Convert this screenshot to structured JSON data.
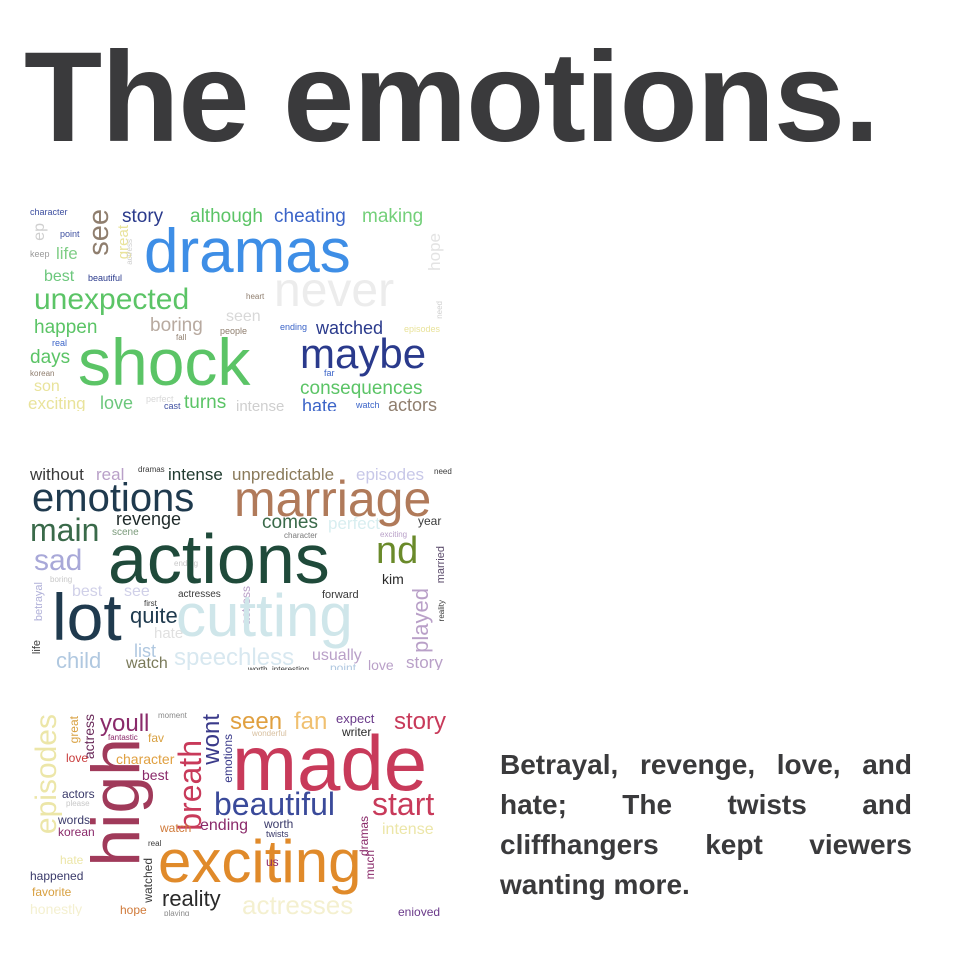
{
  "title": "The emotions.",
  "caption": "Betrayal, revenge, love, and hate; The twists and cliffhangers kept viewers wanting more.",
  "clouds": [
    {
      "words": [
        {
          "text": "character",
          "color": "#3d4fa0"
        },
        {
          "text": "story",
          "color": "#2a3a8c"
        },
        {
          "text": "although",
          "color": "#5bc466"
        },
        {
          "text": "cheating",
          "color": "#3b64c8"
        },
        {
          "text": "making",
          "color": "#74d07a"
        },
        {
          "text": "ep",
          "color": "#cfcfcf"
        },
        {
          "text": "point",
          "color": "#3d4fa0"
        },
        {
          "text": "see",
          "color": "#8f7e6e"
        },
        {
          "text": "great",
          "color": "#e9e39b"
        },
        {
          "text": "dramas",
          "color": "#3e8ee6"
        },
        {
          "text": "hope",
          "color": "#e3e3e3"
        },
        {
          "text": "keep",
          "color": "#9a9a9a"
        },
        {
          "text": "life",
          "color": "#7fce86"
        },
        {
          "text": "actress",
          "color": "#cfcfcf"
        },
        {
          "text": "best",
          "color": "#6cc77c"
        },
        {
          "text": "beautiful",
          "color": "#2a3a8c"
        },
        {
          "text": "never",
          "color": "#ececec"
        },
        {
          "text": "unexpected",
          "color": "#5bc466"
        },
        {
          "text": "heart",
          "color": "#8f7e6e"
        },
        {
          "text": "happen",
          "color": "#5bc466"
        },
        {
          "text": "boring",
          "color": "#b8aaa0"
        },
        {
          "text": "fall",
          "color": "#8f7e6e"
        },
        {
          "text": "people",
          "color": "#8f7e6e"
        },
        {
          "text": "seen",
          "color": "#d8d8d8"
        },
        {
          "text": "ending",
          "color": "#3b64c8"
        },
        {
          "text": "watched",
          "color": "#2a3a8c"
        },
        {
          "text": "episodes",
          "color": "#e9e39b"
        },
        {
          "text": "need",
          "color": "#cfcfcf"
        },
        {
          "text": "real",
          "color": "#3b64c8"
        },
        {
          "text": "days",
          "color": "#5bc466"
        },
        {
          "text": "shock",
          "color": "#5bc466"
        },
        {
          "text": "maybe",
          "color": "#2a3a8c"
        },
        {
          "text": "korean",
          "color": "#8f7e6e"
        },
        {
          "text": "far",
          "color": "#3b64c8"
        },
        {
          "text": "son",
          "color": "#e9e39b"
        },
        {
          "text": "consequences",
          "color": "#5bc466"
        },
        {
          "text": "exciting",
          "color": "#e9e39b"
        },
        {
          "text": "love",
          "color": "#6cc77c"
        },
        {
          "text": "perfect",
          "color": "#d8d8d8"
        },
        {
          "text": "cast",
          "color": "#3d4fa0"
        },
        {
          "text": "turns",
          "color": "#5bc466"
        },
        {
          "text": "intense",
          "color": "#cfcfcf"
        },
        {
          "text": "hate",
          "color": "#3b64c8"
        },
        {
          "text": "watch",
          "color": "#3b64c8"
        },
        {
          "text": "actors",
          "color": "#8f7e6e"
        }
      ]
    },
    {
      "words": [
        {
          "text": "without",
          "color": "#3a3a3a"
        },
        {
          "text": "real",
          "color": "#b9a0c8"
        },
        {
          "text": "dramas",
          "color": "#3a3a3a"
        },
        {
          "text": "intense",
          "color": "#1f3a2e"
        },
        {
          "text": "unpredictable",
          "color": "#8a7a5a"
        },
        {
          "text": "episodes",
          "color": "#c8c8e8"
        },
        {
          "text": "need",
          "color": "#3a3a3a"
        },
        {
          "text": "emotions",
          "color": "#1f3a4e"
        },
        {
          "text": "marriage",
          "color": "#b07a5a"
        },
        {
          "text": "revenge",
          "color": "#1f2a2a"
        },
        {
          "text": "main",
          "color": "#3a6a4a"
        },
        {
          "text": "scene",
          "color": "#7a9a7a"
        },
        {
          "text": "comes",
          "color": "#3a6a4a"
        },
        {
          "text": "perfect",
          "color": "#d8eef0"
        },
        {
          "text": "year",
          "color": "#3a3a3a"
        },
        {
          "text": "character",
          "color": "#7a7a7a"
        },
        {
          "text": "exciting",
          "color": "#b9a0c8"
        },
        {
          "text": "sad",
          "color": "#a8a8d8"
        },
        {
          "text": "ending",
          "color": "#c8c8c8"
        },
        {
          "text": "actions",
          "color": "#1f4a3a"
        },
        {
          "text": "nd",
          "color": "#6a8a2a"
        },
        {
          "text": "married",
          "color": "#5a4a6a"
        },
        {
          "text": "boring",
          "color": "#c8c8c8"
        },
        {
          "text": "kim",
          "color": "#2a2a2a"
        },
        {
          "text": "betrayal",
          "color": "#b0b0d8"
        },
        {
          "text": "best",
          "color": "#d0d0e8"
        },
        {
          "text": "see",
          "color": "#d0d0e8"
        },
        {
          "text": "actresses",
          "color": "#3a3a3a"
        },
        {
          "text": "actress",
          "color": "#b9a0c8"
        },
        {
          "text": "forward",
          "color": "#3a3a3a"
        },
        {
          "text": "played",
          "color": "#b9a0c8"
        },
        {
          "text": "reality",
          "color": "#3a3a3a"
        },
        {
          "text": "first",
          "color": "#3a3a3a"
        },
        {
          "text": "lot",
          "color": "#1f3a4e"
        },
        {
          "text": "quite",
          "color": "#1f3a4e"
        },
        {
          "text": "hate",
          "color": "#e0e0e0"
        },
        {
          "text": "cutting",
          "color": "#cfe6ea"
        },
        {
          "text": "life",
          "color": "#3a3a3a"
        },
        {
          "text": "list",
          "color": "#b0c8e0"
        },
        {
          "text": "child",
          "color": "#b0c8e0"
        },
        {
          "text": "watch",
          "color": "#7a7a5a"
        },
        {
          "text": "speechless",
          "color": "#d8e8f0"
        },
        {
          "text": "usually",
          "color": "#b9a0c8"
        },
        {
          "text": "love",
          "color": "#b9a0c8"
        },
        {
          "text": "story",
          "color": "#b9a0c8"
        },
        {
          "text": "worth",
          "color": "#3a3a3a"
        },
        {
          "text": "interesting",
          "color": "#3a3a3a"
        },
        {
          "text": "point",
          "color": "#b0c8e0"
        }
      ]
    },
    {
      "words": [
        {
          "text": "episodes",
          "color": "#ece6a8"
        },
        {
          "text": "great",
          "color": "#d8a040"
        },
        {
          "text": "actress",
          "color": "#6a2a5a"
        },
        {
          "text": "youll",
          "color": "#8a2a6a"
        },
        {
          "text": "moment",
          "color": "#8a8a8a"
        },
        {
          "text": "fantastic",
          "color": "#8a2a6a"
        },
        {
          "text": "fav",
          "color": "#d8a040"
        },
        {
          "text": "wont",
          "color": "#3a3a8a"
        },
        {
          "text": "seen",
          "color": "#e0a040"
        },
        {
          "text": "fan",
          "color": "#f0c070"
        },
        {
          "text": "expect",
          "color": "#6a3a8a"
        },
        {
          "text": "writer",
          "color": "#2a2a2a"
        },
        {
          "text": "story",
          "color": "#c83a5a"
        },
        {
          "text": "wonderful",
          "color": "#d8c0a0"
        },
        {
          "text": "love",
          "color": "#c83a3a"
        },
        {
          "text": "character",
          "color": "#e0a040"
        },
        {
          "text": "emotions",
          "color": "#3a3a8a"
        },
        {
          "text": "made",
          "color": "#c83a5a"
        },
        {
          "text": "high",
          "color": "#a03a5a"
        },
        {
          "text": "best",
          "color": "#8a2a6a"
        },
        {
          "text": "breath",
          "color": "#c83a5a"
        },
        {
          "text": "actors",
          "color": "#3a3a6a"
        },
        {
          "text": "please",
          "color": "#c8c8c8"
        },
        {
          "text": "beautiful",
          "color": "#3a4a9a"
        },
        {
          "text": "start",
          "color": "#c83a5a"
        },
        {
          "text": "words",
          "color": "#3a3a6a"
        },
        {
          "text": "korean",
          "color": "#8a2a6a"
        },
        {
          "text": "watch",
          "color": "#d07a3a"
        },
        {
          "text": "ending",
          "color": "#8a2a6a"
        },
        {
          "text": "worth",
          "color": "#3a3a6a"
        },
        {
          "text": "twists",
          "color": "#3a3a6a"
        },
        {
          "text": "dramas",
          "color": "#8a2a6a"
        },
        {
          "text": "intense",
          "color": "#ece6a8"
        },
        {
          "text": "real",
          "color": "#3a3a3a"
        },
        {
          "text": "exciting",
          "color": "#e08a2a"
        },
        {
          "text": "hate",
          "color": "#ece6a8"
        },
        {
          "text": "us",
          "color": "#8a2a6a"
        },
        {
          "text": "much",
          "color": "#8a2a6a"
        },
        {
          "text": "happened",
          "color": "#3a3a6a"
        },
        {
          "text": "watched",
          "color": "#3a3a3a"
        },
        {
          "text": "favorite",
          "color": "#d8a040"
        },
        {
          "text": "reality",
          "color": "#2a2a2a"
        },
        {
          "text": "honestly",
          "color": "#f4f0d0"
        },
        {
          "text": "hope",
          "color": "#d07a3a"
        },
        {
          "text": "playing",
          "color": "#8a8a8a"
        },
        {
          "text": "actresses",
          "color": "#f4f0d0"
        },
        {
          "text": "enjoyed",
          "color": "#6a3a8a"
        }
      ]
    }
  ]
}
